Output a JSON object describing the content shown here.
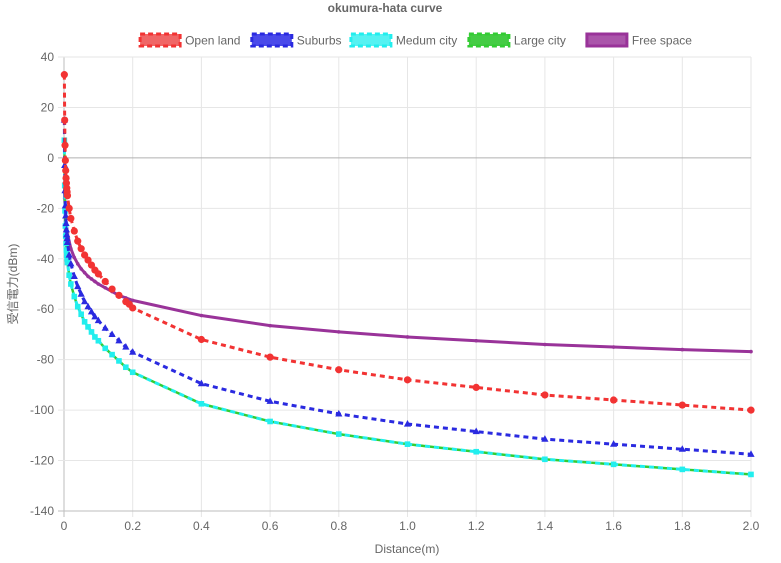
{
  "chart_data": {
    "type": "line",
    "title": "okumura-hata curve",
    "xlabel": "Distance(m)",
    "ylabel": "受信電力(dBm)",
    "xlim": [
      0,
      2.0
    ],
    "ylim": [
      -140,
      40
    ],
    "x_ticks": [
      "0",
      "0.2",
      "0.4",
      "0.6",
      "0.8",
      "1.0",
      "1.2",
      "1.4",
      "1.6",
      "1.8",
      "2.0"
    ],
    "y_ticks": [
      "40",
      "20",
      "0",
      "-20",
      "-40",
      "-60",
      "-80",
      "-100",
      "-120",
      "-140"
    ],
    "grid": true,
    "legend_position": "top",
    "series": [
      {
        "name": "Open land",
        "color": "#f23333",
        "style": "dashed",
        "marker": "circle",
        "points": [
          [
            0.001,
            33
          ],
          [
            0.002,
            15
          ],
          [
            0.003,
            5
          ],
          [
            0.004,
            -1
          ],
          [
            0.005,
            -5
          ],
          [
            0.006,
            -8
          ],
          [
            0.007,
            -10
          ],
          [
            0.008,
            -12
          ],
          [
            0.009,
            -13.5
          ],
          [
            0.01,
            -15
          ],
          [
            0.015,
            -20
          ],
          [
            0.02,
            -24
          ],
          [
            0.03,
            -29
          ],
          [
            0.04,
            -33
          ],
          [
            0.05,
            -36
          ],
          [
            0.06,
            -38.5
          ],
          [
            0.07,
            -40.5
          ],
          [
            0.08,
            -42.5
          ],
          [
            0.09,
            -44.5
          ],
          [
            0.1,
            -46
          ],
          [
            0.12,
            -49
          ],
          [
            0.14,
            -52
          ],
          [
            0.16,
            -54.5
          ],
          [
            0.18,
            -57
          ],
          [
            0.19,
            -58
          ],
          [
            0.2,
            -59.5
          ],
          [
            0.4,
            -72
          ],
          [
            0.6,
            -79
          ],
          [
            0.8,
            -84
          ],
          [
            1.0,
            -88
          ],
          [
            1.2,
            -91
          ],
          [
            1.4,
            -94
          ],
          [
            1.6,
            -96
          ],
          [
            1.8,
            -98
          ],
          [
            2.0,
            -100
          ]
        ]
      },
      {
        "name": "Suburbs",
        "color": "#2a2ae0",
        "style": "dashed",
        "marker": "triangle",
        "points": [
          [
            0.001,
            15
          ],
          [
            0.002,
            -3
          ],
          [
            0.003,
            -13
          ],
          [
            0.004,
            -19
          ],
          [
            0.005,
            -23
          ],
          [
            0.006,
            -26
          ],
          [
            0.007,
            -28.5
          ],
          [
            0.008,
            -30.5
          ],
          [
            0.009,
            -32
          ],
          [
            0.01,
            -33.5
          ],
          [
            0.015,
            -38.5
          ],
          [
            0.02,
            -42
          ],
          [
            0.03,
            -47
          ],
          [
            0.04,
            -51
          ],
          [
            0.05,
            -54
          ],
          [
            0.06,
            -57
          ],
          [
            0.07,
            -59
          ],
          [
            0.08,
            -61
          ],
          [
            0.09,
            -63
          ],
          [
            0.1,
            -64.5
          ],
          [
            0.12,
            -67.5
          ],
          [
            0.14,
            -70
          ],
          [
            0.16,
            -72.5
          ],
          [
            0.18,
            -75
          ],
          [
            0.2,
            -77
          ],
          [
            0.4,
            -89.5
          ],
          [
            0.6,
            -96.5
          ],
          [
            0.8,
            -101.5
          ],
          [
            1.0,
            -105.5
          ],
          [
            1.2,
            -108.5
          ],
          [
            1.4,
            -111.5
          ],
          [
            1.6,
            -113.5
          ],
          [
            1.8,
            -115.5
          ],
          [
            2.0,
            -117.5
          ]
        ]
      },
      {
        "name": "Medum city",
        "color": "#22eeee",
        "style": "dashed",
        "marker": "square",
        "points": [
          [
            0.001,
            7
          ],
          [
            0.002,
            -11
          ],
          [
            0.003,
            -21
          ],
          [
            0.004,
            -27
          ],
          [
            0.005,
            -31
          ],
          [
            0.006,
            -34
          ],
          [
            0.007,
            -36.5
          ],
          [
            0.008,
            -38.5
          ],
          [
            0.009,
            -40
          ],
          [
            0.01,
            -41.5
          ],
          [
            0.015,
            -46.5
          ],
          [
            0.02,
            -50
          ],
          [
            0.03,
            -55
          ],
          [
            0.04,
            -59
          ],
          [
            0.05,
            -62
          ],
          [
            0.06,
            -65
          ],
          [
            0.07,
            -67
          ],
          [
            0.08,
            -69
          ],
          [
            0.09,
            -71
          ],
          [
            0.1,
            -72.5
          ],
          [
            0.12,
            -75.5
          ],
          [
            0.14,
            -78
          ],
          [
            0.16,
            -80.5
          ],
          [
            0.18,
            -83
          ],
          [
            0.2,
            -85
          ],
          [
            0.4,
            -97.5
          ],
          [
            0.6,
            -104.5
          ],
          [
            0.8,
            -109.5
          ],
          [
            1.0,
            -113.5
          ],
          [
            1.2,
            -116.5
          ],
          [
            1.4,
            -119.5
          ],
          [
            1.6,
            -121.5
          ],
          [
            1.8,
            -123.5
          ],
          [
            2.0,
            -125.5
          ]
        ]
      },
      {
        "name": "Large city",
        "color": "#33cc33",
        "style": "dashed",
        "marker": "none",
        "points": [
          [
            0.001,
            7
          ],
          [
            0.002,
            -11
          ],
          [
            0.003,
            -21
          ],
          [
            0.004,
            -27
          ],
          [
            0.005,
            -31
          ],
          [
            0.006,
            -34
          ],
          [
            0.007,
            -36.5
          ],
          [
            0.008,
            -38.5
          ],
          [
            0.009,
            -40
          ],
          [
            0.01,
            -41.5
          ],
          [
            0.015,
            -46.5
          ],
          [
            0.02,
            -50
          ],
          [
            0.03,
            -55
          ],
          [
            0.04,
            -59
          ],
          [
            0.05,
            -62
          ],
          [
            0.06,
            -65
          ],
          [
            0.07,
            -67
          ],
          [
            0.08,
            -69
          ],
          [
            0.09,
            -71
          ],
          [
            0.1,
            -72.5
          ],
          [
            0.12,
            -75.5
          ],
          [
            0.14,
            -78
          ],
          [
            0.16,
            -80.5
          ],
          [
            0.18,
            -83
          ],
          [
            0.2,
            -85
          ],
          [
            0.4,
            -97.5
          ],
          [
            0.6,
            -104.5
          ],
          [
            0.8,
            -109.5
          ],
          [
            1.0,
            -113.5
          ],
          [
            1.2,
            -116.5
          ],
          [
            1.4,
            -119.5
          ],
          [
            1.6,
            -121.5
          ],
          [
            1.8,
            -123.5
          ],
          [
            2.0,
            -125.5
          ]
        ]
      },
      {
        "name": "Free space",
        "color": "#993399",
        "style": "solid",
        "marker": "small",
        "points": [
          [
            0.001,
            -10
          ],
          [
            0.002,
            -16
          ],
          [
            0.004,
            -22
          ],
          [
            0.006,
            -25.5
          ],
          [
            0.008,
            -28
          ],
          [
            0.01,
            -30
          ],
          [
            0.02,
            -36
          ],
          [
            0.03,
            -39.5
          ],
          [
            0.04,
            -42
          ],
          [
            0.05,
            -44
          ],
          [
            0.06,
            -45.5
          ],
          [
            0.07,
            -47
          ],
          [
            0.08,
            -48
          ],
          [
            0.09,
            -49
          ],
          [
            0.1,
            -50
          ],
          [
            0.12,
            -51.5
          ],
          [
            0.14,
            -53
          ],
          [
            0.16,
            -54.5
          ],
          [
            0.18,
            -55.5
          ],
          [
            0.2,
            -56.5
          ],
          [
            0.4,
            -62.5
          ],
          [
            0.6,
            -66.5
          ],
          [
            0.8,
            -69
          ],
          [
            1.0,
            -71
          ],
          [
            1.2,
            -72.5
          ],
          [
            1.4,
            -74
          ],
          [
            1.6,
            -75
          ],
          [
            1.8,
            -76
          ],
          [
            2.0,
            -76.8
          ]
        ]
      }
    ]
  }
}
